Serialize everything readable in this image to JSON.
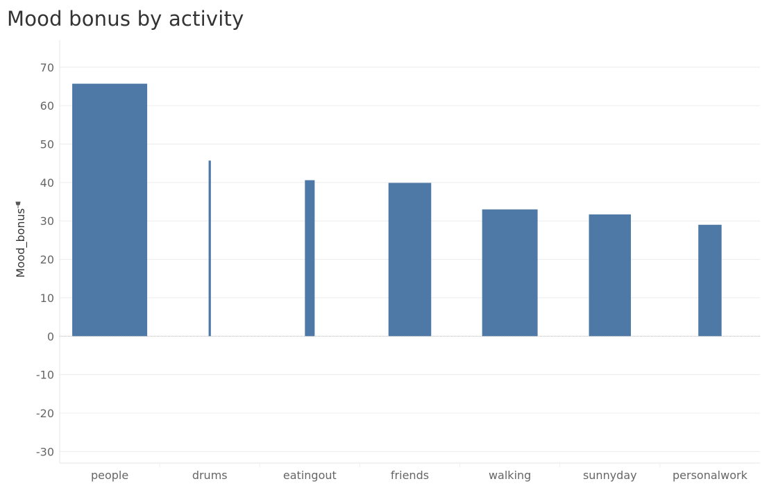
{
  "chart_data": {
    "type": "bar",
    "title": "Mood bonus by activity",
    "ylabel": "Mood_bonus",
    "xlabel": "",
    "categories": [
      "people",
      "drums",
      "eatingout",
      "friends",
      "walking",
      "sunnyday",
      "personalwork"
    ],
    "values": [
      65.7,
      45.7,
      40.6,
      39.9,
      33.0,
      31.7,
      29.0
    ],
    "relative_bar_widths": [
      1.0,
      0.03,
      0.13,
      0.57,
      0.74,
      0.56,
      0.31
    ],
    "ylim": [
      -33,
      77
    ],
    "yticks": [
      "70",
      "60",
      "50",
      "40",
      "30",
      "20",
      "10",
      "0",
      "-10",
      "-20",
      "-30"
    ],
    "grid": true,
    "legend": "none",
    "colors": {
      "bar": "#4e79a7",
      "grid": "#ececec",
      "zero_line": "#b0b0b0"
    }
  }
}
